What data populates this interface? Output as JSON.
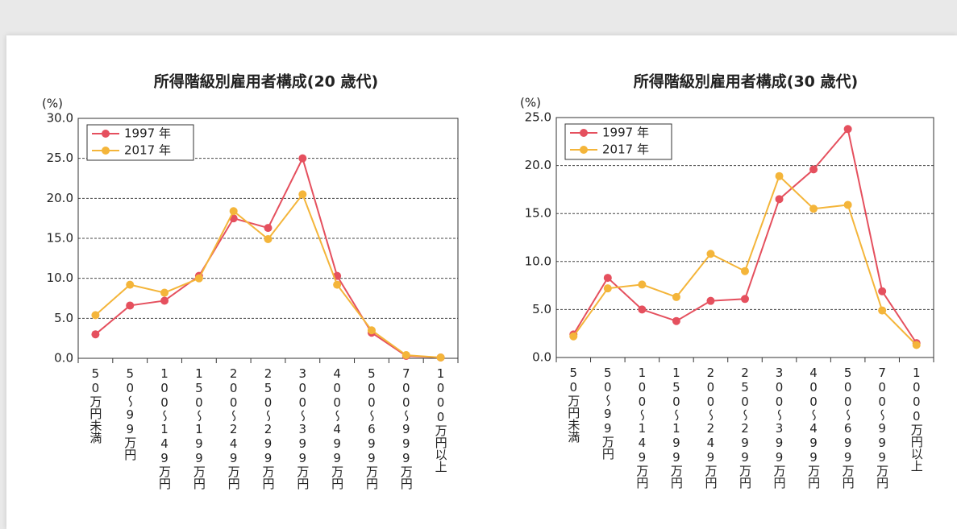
{
  "chart_data": [
    {
      "type": "line",
      "title": "所得階級別雇用者構成(20 歳代)",
      "y_label": "(%)",
      "categories": [
        "50万円未満",
        "50～99万円",
        "100～149万円",
        "150～199万円",
        "200～249万円",
        "250～299万円",
        "300～399万円",
        "400～499万円",
        "500～699万円",
        "700～999万円",
        "1000万円以上"
      ],
      "series": [
        {
          "name": "1997 年",
          "color": "#e5505e",
          "values": [
            3.0,
            6.6,
            7.2,
            10.3,
            17.5,
            16.3,
            25.0,
            10.3,
            3.2,
            0.3,
            0.1
          ]
        },
        {
          "name": "2017 年",
          "color": "#f4b53a",
          "values": [
            5.4,
            9.2,
            8.2,
            10.0,
            18.4,
            14.9,
            20.5,
            9.2,
            3.5,
            0.4,
            0.1
          ]
        }
      ],
      "ylim": [
        0,
        30
      ],
      "yticks": [
        {
          "value": 0,
          "label": "0.0"
        },
        {
          "value": 5,
          "label": "5.0"
        },
        {
          "value": 10,
          "label": "10.0"
        },
        {
          "value": 15,
          "label": "15.0"
        },
        {
          "value": 20,
          "label": "20.0"
        },
        {
          "value": 25,
          "label": "25.0"
        },
        {
          "value": 30,
          "label": "30.0"
        }
      ],
      "grid": true,
      "legend": "upper-left"
    },
    {
      "type": "line",
      "title": "所得階級別雇用者構成(30 歳代)",
      "y_label": "(%)",
      "categories": [
        "50万円未満",
        "50～99万円",
        "100～149万円",
        "150～199万円",
        "200～249万円",
        "250～299万円",
        "300～399万円",
        "400～499万円",
        "500～699万円",
        "700～999万円",
        "1000万円以上"
      ],
      "series": [
        {
          "name": "1997 年",
          "color": "#e5505e",
          "values": [
            2.4,
            8.3,
            5.0,
            3.8,
            5.9,
            6.1,
            16.5,
            19.6,
            23.8,
            6.9,
            1.5
          ]
        },
        {
          "name": "2017 年",
          "color": "#f4b53a",
          "values": [
            2.2,
            7.2,
            7.6,
            6.3,
            10.8,
            9.0,
            18.9,
            15.5,
            15.9,
            4.9,
            1.3
          ]
        }
      ],
      "ylim": [
        0,
        25
      ],
      "yticks": [
        {
          "value": 0,
          "label": "0.0"
        },
        {
          "value": 5,
          "label": "5.0"
        },
        {
          "value": 10,
          "label": "10.0"
        },
        {
          "value": 15,
          "label": "15.0"
        },
        {
          "value": 20,
          "label": "20.0"
        },
        {
          "value": 25,
          "label": "25.0"
        }
      ],
      "grid": true,
      "legend": "upper-left"
    }
  ]
}
